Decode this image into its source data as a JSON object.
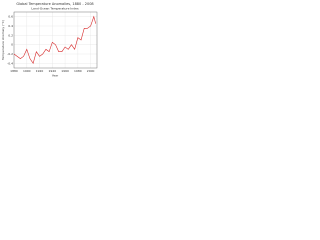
{
  "chart_data": {
    "type": "line",
    "title": "Global Temperature Anomalies, 1880 - 2008",
    "subtitle": "Land-Ocean Temperature Index",
    "x_label": "Year",
    "y_label": "Temperature Anomaly (°C)",
    "x": [
      1880,
      1885,
      1890,
      1895,
      1900,
      1905,
      1910,
      1915,
      1920,
      1925,
      1930,
      1935,
      1940,
      1945,
      1950,
      1955,
      1960,
      1965,
      1970,
      1975,
      1980,
      1985,
      1990,
      1995,
      2000,
      2005,
      2008
    ],
    "values": [
      -0.2,
      -0.25,
      -0.3,
      -0.25,
      -0.1,
      -0.3,
      -0.4,
      -0.15,
      -0.25,
      -0.2,
      -0.1,
      -0.15,
      0.05,
      0.0,
      -0.15,
      -0.15,
      -0.05,
      -0.1,
      0.0,
      -0.1,
      0.15,
      0.1,
      0.35,
      0.35,
      0.4,
      0.6,
      0.45
    ],
    "color": "#d62728",
    "xlim": [
      1880,
      2010
    ],
    "xticks": [
      1880,
      1900,
      1920,
      1940,
      1960,
      1980,
      2000
    ],
    "ylim": [
      -0.5,
      0.7
    ],
    "yticks": [
      -0.4,
      -0.2,
      0,
      0.2,
      0.4,
      0.6
    ],
    "grid": true
  }
}
